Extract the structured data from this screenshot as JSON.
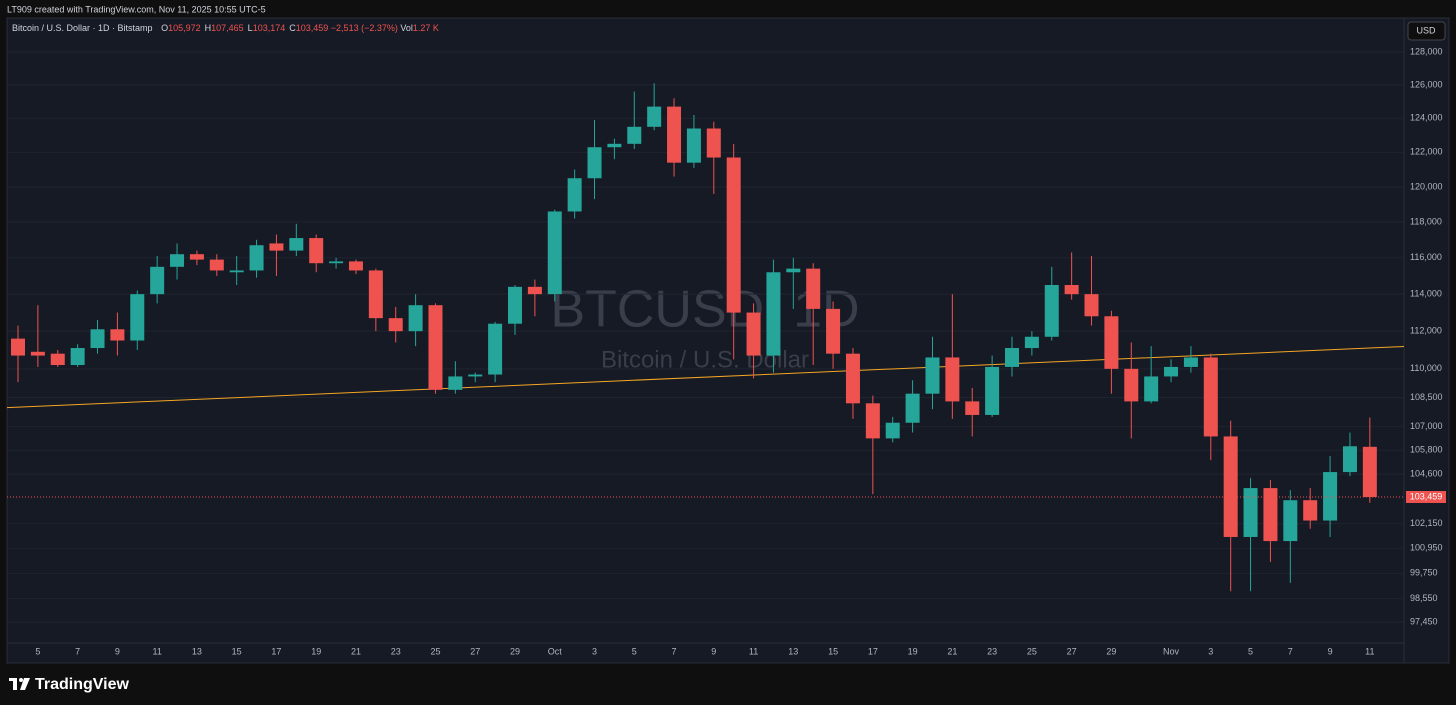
{
  "header": {
    "created": "LT909 created with TradingView.com, Nov 11, 2025 10:55 UTC-5"
  },
  "legend": {
    "symbol": "Bitcoin / U.S. Dollar · 1D · Bitstamp",
    "items": [
      {
        "key": "O",
        "value": "105,972"
      },
      {
        "key": "H",
        "value": "107,465"
      },
      {
        "key": "L",
        "value": "103,174"
      },
      {
        "key": "C",
        "value": "103,459"
      }
    ],
    "change": "−2,513 (−2.37%)",
    "vol_key": "Vol",
    "vol": "1.27 K"
  },
  "currency": "USD",
  "watermark": {
    "symbol": "BTCUSD, 1D",
    "name": "Bitcoin / U.S. Dollar"
  },
  "footer": {
    "brand": "TradingView"
  },
  "chart_data": {
    "type": "candlestick",
    "log_scale": true,
    "grid": true,
    "up_color": "#26a69a",
    "down_color": "#ef5350",
    "x": [
      null,
      "5",
      null,
      "7",
      null,
      "9",
      null,
      "11",
      null,
      "13",
      null,
      "15",
      null,
      "17",
      null,
      "19",
      null,
      "21",
      null,
      "23",
      null,
      "25",
      null,
      "27",
      null,
      "29",
      null,
      "Oct",
      null,
      "3",
      null,
      "5",
      null,
      "7",
      null,
      "9",
      null,
      "11",
      null,
      "13",
      null,
      "15",
      null,
      "17",
      null,
      "19",
      null,
      "21",
      null,
      "23",
      null,
      "25",
      null,
      "27",
      null,
      "29",
      null,
      null,
      "Nov",
      null,
      "3",
      null,
      "5",
      null,
      "7",
      null,
      "9",
      null,
      "11"
    ],
    "open": [
      111600,
      110900,
      110800,
      110200,
      111100,
      112100,
      111500,
      114000,
      115500,
      116200,
      115900,
      115200,
      115300,
      116800,
      116400,
      117100,
      115700,
      115800,
      115300,
      112700,
      112000,
      113400,
      108900,
      109600,
      109700,
      112400,
      114400,
      114000,
      118600,
      120500,
      122300,
      122500,
      123500,
      124700,
      121400,
      123400,
      121700,
      113000,
      110700,
      115200,
      115400,
      113200,
      110800,
      108200,
      106400,
      107200,
      108700,
      110600,
      108300,
      107600,
      110100,
      111100,
      111700,
      114500,
      114000,
      112800,
      110000,
      108300,
      109600,
      110100,
      110600,
      106500,
      101500,
      103900,
      101300,
      103300,
      102300,
      104700,
      105972
    ],
    "high": [
      112300,
      113400,
      111000,
      111300,
      112600,
      113000,
      114200,
      116100,
      116800,
      116400,
      116200,
      116100,
      117000,
      117300,
      117900,
      117300,
      116000,
      115900,
      115400,
      113300,
      114000,
      113500,
      110400,
      109800,
      112500,
      114500,
      114800,
      118700,
      121000,
      123900,
      122800,
      125600,
      126100,
      125200,
      124200,
      123800,
      122500,
      113500,
      115900,
      116000,
      115700,
      113600,
      111100,
      108600,
      107500,
      109400,
      111700,
      114000,
      109000,
      110700,
      111700,
      112000,
      115500,
      116300,
      116100,
      113100,
      111400,
      111200,
      110500,
      111200,
      110800,
      107300,
      104400,
      104300,
      103800,
      103900,
      105500,
      106700,
      107465
    ],
    "low": [
      109300,
      110100,
      110100,
      110100,
      110800,
      110700,
      111000,
      113500,
      114800,
      115600,
      115000,
      114500,
      114900,
      115000,
      116100,
      115200,
      115400,
      115100,
      112000,
      111400,
      111200,
      108700,
      108700,
      109300,
      109300,
      111800,
      112800,
      113600,
      118200,
      119300,
      121600,
      122200,
      123300,
      120600,
      121100,
      119600,
      110500,
      109500,
      109800,
      113200,
      110200,
      110000,
      107400,
      103600,
      106200,
      106700,
      107900,
      107400,
      106500,
      107500,
      109600,
      110700,
      111500,
      113700,
      112300,
      108700,
      106400,
      108200,
      109300,
      109800,
      105300,
      98900,
      98900,
      100300,
      99300,
      101900,
      101500,
      104500,
      103174
    ],
    "close": [
      110700,
      110700,
      110200,
      111100,
      112100,
      111500,
      114000,
      115500,
      116200,
      115900,
      115300,
      115300,
      116700,
      116400,
      117100,
      115700,
      115800,
      115300,
      112700,
      112000,
      113400,
      108900,
      109600,
      109700,
      112400,
      114400,
      114000,
      118600,
      120500,
      122300,
      122500,
      123500,
      124700,
      121400,
      123400,
      121700,
      113000,
      110700,
      115200,
      115400,
      113200,
      110800,
      108200,
      106400,
      107200,
      108700,
      110600,
      108300,
      107600,
      110100,
      111100,
      111700,
      114500,
      114000,
      112800,
      110000,
      108300,
      109600,
      110100,
      110600,
      106500,
      101500,
      103900,
      101300,
      103300,
      102300,
      104700,
      106000,
      103459
    ],
    "ylim": [
      96480,
      129850
    ],
    "yticks": [
      {
        "value": 97450,
        "label": "97,450"
      },
      {
        "value": 98550,
        "label": "98,550"
      },
      {
        "value": 99750,
        "label": "99,750"
      },
      {
        "value": 100950,
        "label": "100,950"
      },
      {
        "value": 102150,
        "label": "102,150"
      },
      {
        "value": 104600,
        "label": "104,600"
      },
      {
        "value": 105800,
        "label": "105,800"
      },
      {
        "value": 107000,
        "label": "107,000"
      },
      {
        "value": 108500,
        "label": "108,500"
      },
      {
        "value": 110000,
        "label": "110,000"
      },
      {
        "value": 112000,
        "label": "112,000"
      },
      {
        "value": 114000,
        "label": "114,000"
      },
      {
        "value": 116000,
        "label": "116,000"
      },
      {
        "value": 118000,
        "label": "118,000"
      },
      {
        "value": 120000,
        "label": "120,000"
      },
      {
        "value": 122000,
        "label": "122,000"
      },
      {
        "value": 124000,
        "label": "124,000"
      },
      {
        "value": 126000,
        "label": "126,000"
      },
      {
        "value": 128000,
        "label": "128,000"
      }
    ],
    "last_price": {
      "value": 103459,
      "label": "103,459"
    },
    "trendline": {
      "color": "#f5a623",
      "values": [
        108000,
        111100
      ]
    }
  }
}
